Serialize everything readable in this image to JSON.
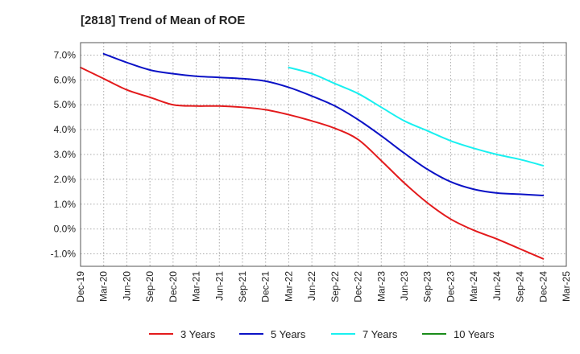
{
  "chart_data": {
    "type": "line",
    "title": "[2818]  Trend of Mean of ROE",
    "xlabel": "",
    "ylabel": "",
    "ylim": [
      -1.5,
      7.5
    ],
    "yticks": [
      -1.0,
      0.0,
      1.0,
      2.0,
      3.0,
      4.0,
      5.0,
      6.0,
      7.0
    ],
    "ytick_labels": [
      "-1.0%",
      "0.0%",
      "1.0%",
      "2.0%",
      "3.0%",
      "4.0%",
      "5.0%",
      "6.0%",
      "7.0%"
    ],
    "x_tick_labels": [
      "Dec-19",
      "Mar-20",
      "Jun-20",
      "Sep-20",
      "Dec-20",
      "Mar-21",
      "Jun-21",
      "Sep-21",
      "Dec-21",
      "Mar-22",
      "Jun-22",
      "Sep-22",
      "Dec-22",
      "Mar-23",
      "Jun-23",
      "Sep-23",
      "Dec-23",
      "Mar-24",
      "Jun-24",
      "Sep-24",
      "Dec-24",
      "Mar-25"
    ],
    "grid": true,
    "legend_position": "bottom",
    "series": [
      {
        "name": "3 Years",
        "color": "#e31a1c",
        "start_index": 0,
        "values": [
          6.5,
          6.05,
          5.6,
          5.3,
          5.0,
          4.95,
          4.95,
          4.9,
          4.8,
          4.6,
          4.35,
          4.05,
          3.6,
          2.75,
          1.85,
          1.05,
          0.4,
          -0.05,
          -0.4,
          -0.8,
          -1.2
        ]
      },
      {
        "name": "5 Years",
        "color": "#0b12c6",
        "start_index": 1,
        "values": [
          7.05,
          6.7,
          6.4,
          6.25,
          6.15,
          6.1,
          6.05,
          5.95,
          5.7,
          5.35,
          4.95,
          4.4,
          3.75,
          3.05,
          2.4,
          1.9,
          1.6,
          1.45,
          1.4,
          1.35
        ]
      },
      {
        "name": "7 Years",
        "color": "#19f0f0",
        "start_index": 9,
        "values": [
          6.5,
          6.25,
          5.85,
          5.45,
          4.9,
          4.35,
          3.95,
          3.55,
          3.25,
          3.0,
          2.8,
          2.55
        ]
      },
      {
        "name": "10 Years",
        "color": "#1a8c1a",
        "start_index": 0,
        "values": []
      }
    ]
  }
}
